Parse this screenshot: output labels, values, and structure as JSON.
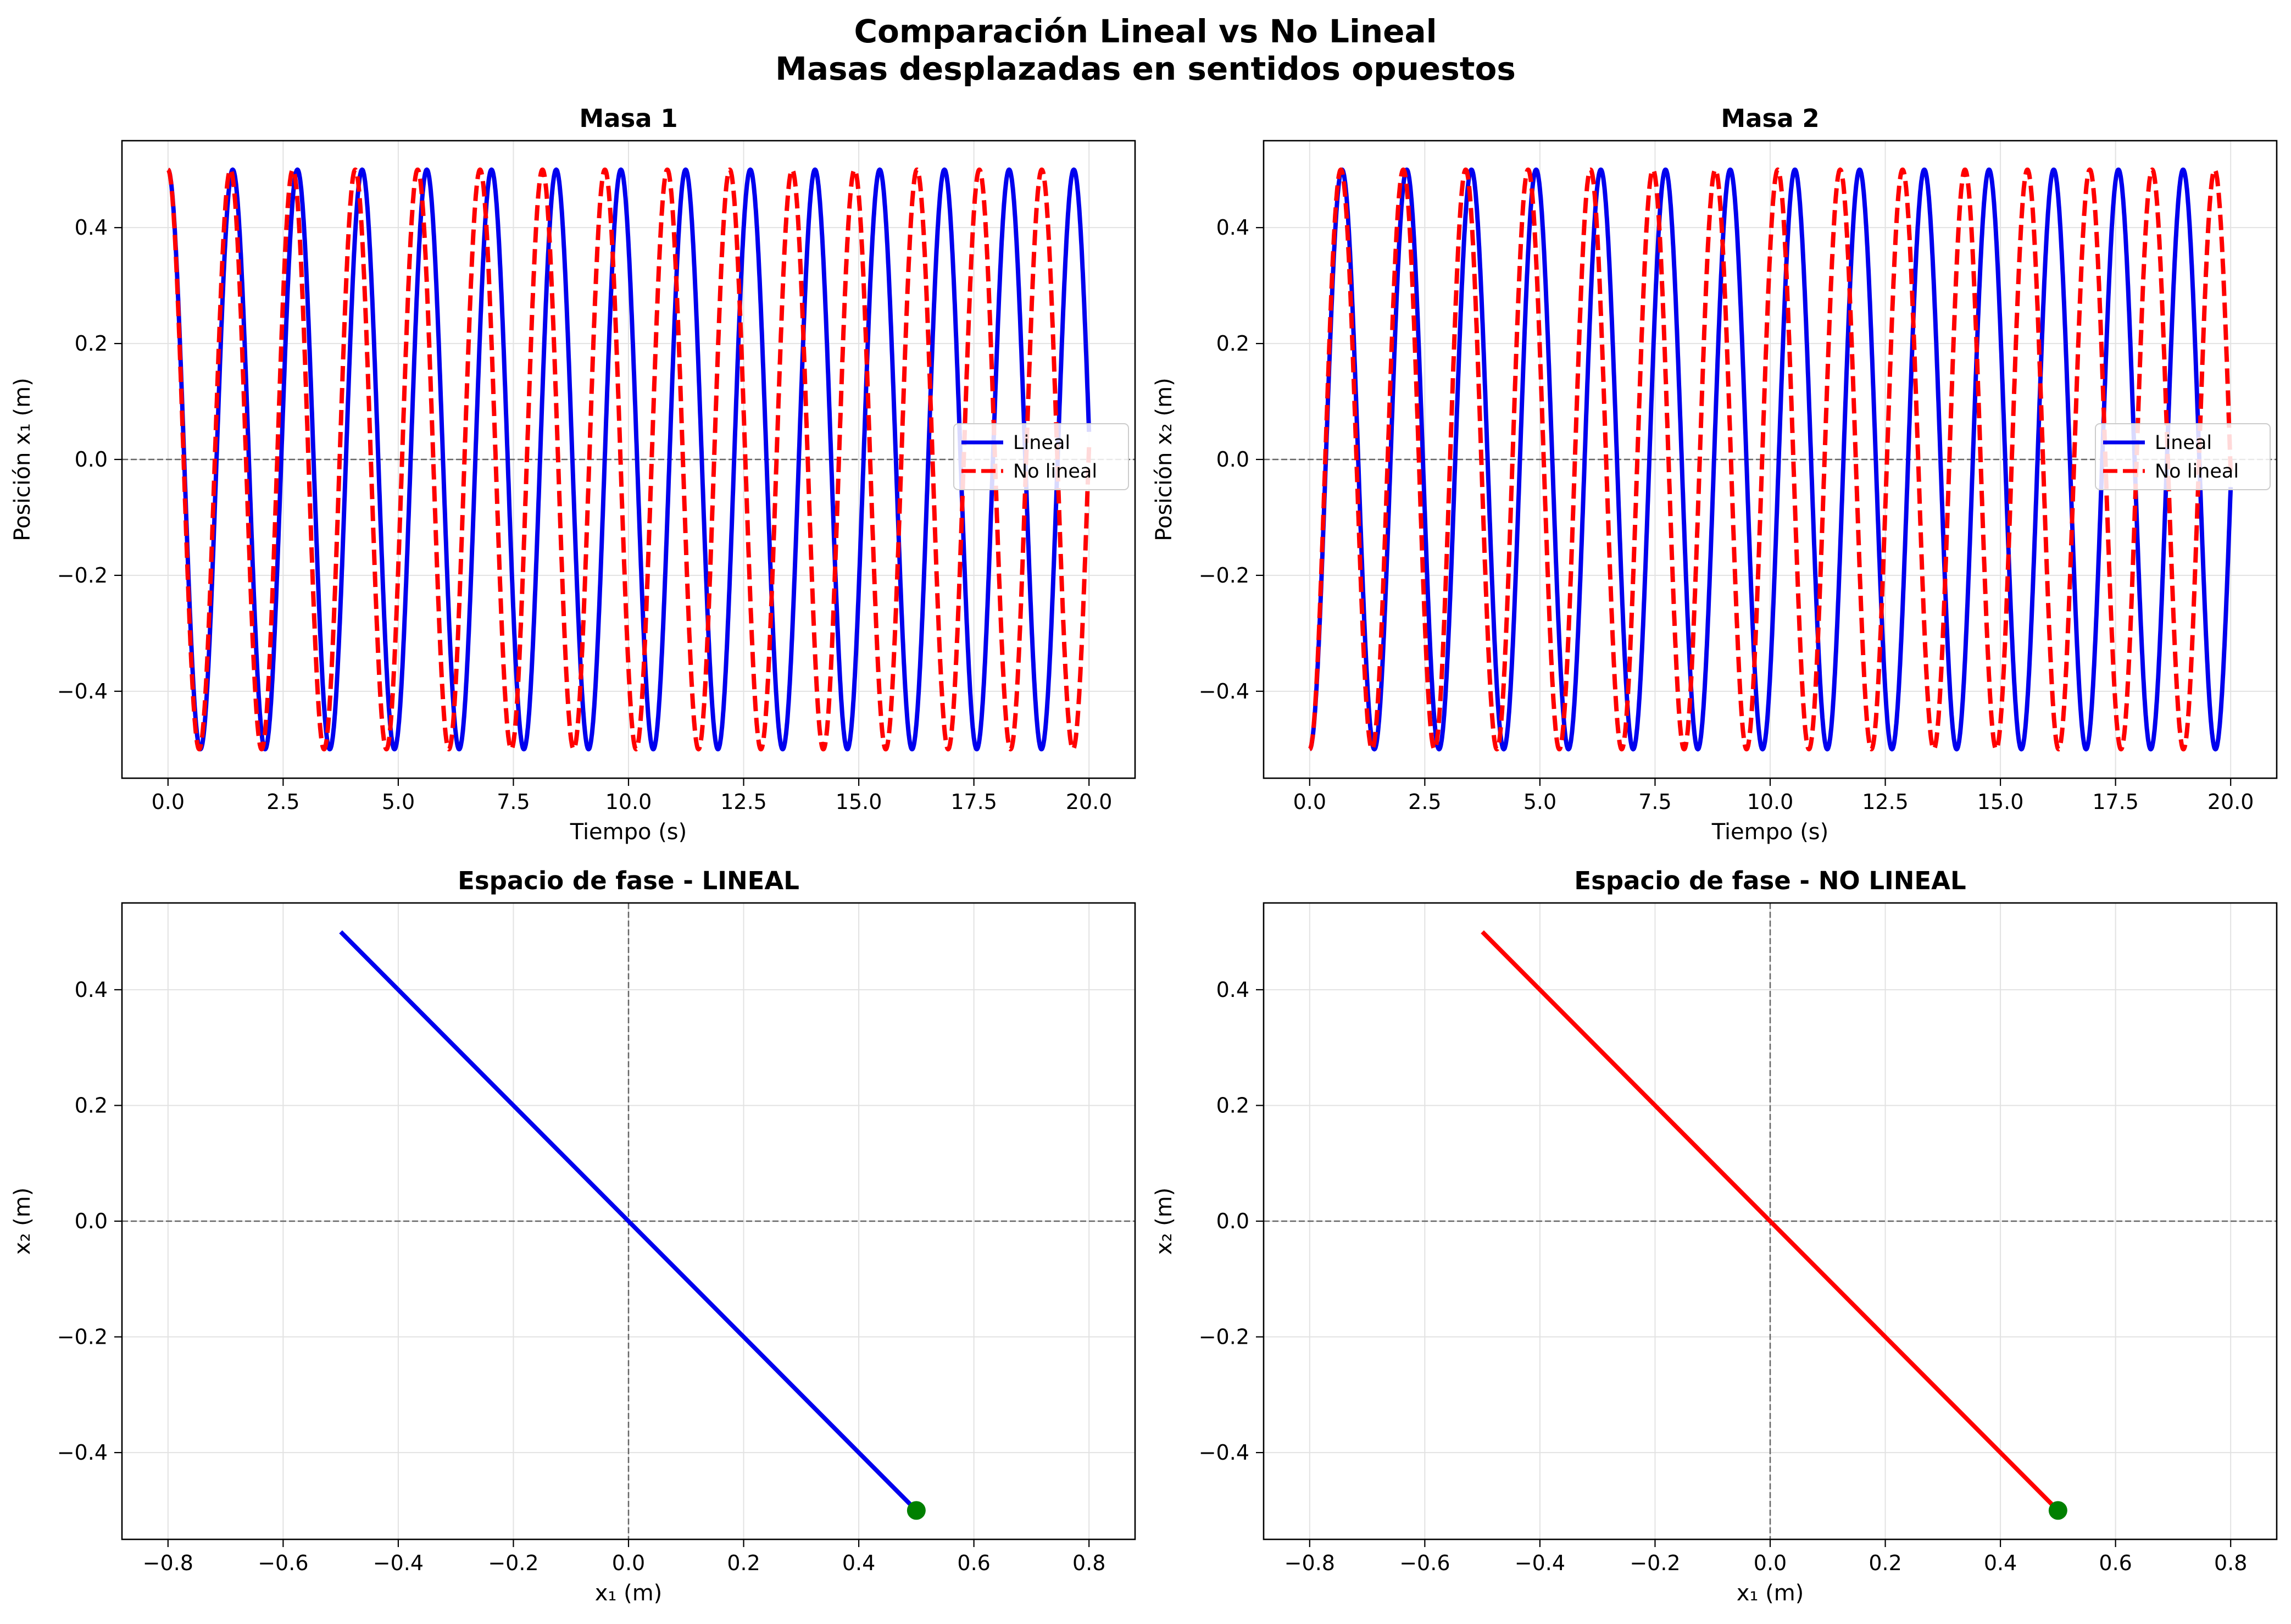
{
  "figure": {
    "title_line1": "Comparación Lineal vs No Lineal",
    "title_line2": "Masas desplazadas en sentidos opuestos"
  },
  "colors": {
    "lineal": "#0000ee",
    "no_lineal": "#ff0000",
    "marker": "#008000",
    "grid": "#e2e2e2",
    "zero": "#666666"
  },
  "chart_data": [
    {
      "id": "masa1",
      "type": "line",
      "title": "Masa 1",
      "xlabel": "Tiempo (s)",
      "ylabel": "Posición x₁ (m)",
      "xlim": [
        -1.0,
        21.0
      ],
      "ylim": [
        -0.55,
        0.55
      ],
      "xticks": [
        0,
        2.5,
        5,
        7.5,
        10,
        12.5,
        15,
        17.5,
        20
      ],
      "xtick_labels": [
        "0.0",
        "2.5",
        "5.0",
        "7.5",
        "10.0",
        "12.5",
        "15.0",
        "17.5",
        "20.0"
      ],
      "yticks": [
        -0.4,
        -0.2,
        0.0,
        0.2,
        0.4
      ],
      "ytick_labels": [
        "−0.4",
        "−0.2",
        "0.0",
        "0.2",
        "0.4"
      ],
      "grid": true,
      "zero_line": "y",
      "legend_position": "center-right",
      "series": [
        {
          "name": "Lineal",
          "style": "solid",
          "color": "#0000ee",
          "function": "0.5*cos(4.472*t)",
          "t_range": [
            0,
            20
          ]
        },
        {
          "name": "No lineal",
          "style": "dashed",
          "color": "#ff0000",
          "function": "0.5*cos(4.636*t)",
          "t_range": [
            0,
            20
          ]
        }
      ]
    },
    {
      "id": "masa2",
      "type": "line",
      "title": "Masa 2",
      "xlabel": "Tiempo (s)",
      "ylabel": "Posición x₂ (m)",
      "xlim": [
        -1.0,
        21.0
      ],
      "ylim": [
        -0.55,
        0.55
      ],
      "xticks": [
        0,
        2.5,
        5,
        7.5,
        10,
        12.5,
        15,
        17.5,
        20
      ],
      "xtick_labels": [
        "0.0",
        "2.5",
        "5.0",
        "7.5",
        "10.0",
        "12.5",
        "15.0",
        "17.5",
        "20.0"
      ],
      "yticks": [
        -0.4,
        -0.2,
        0.0,
        0.2,
        0.4
      ],
      "ytick_labels": [
        "−0.4",
        "−0.2",
        "0.0",
        "0.2",
        "0.4"
      ],
      "grid": true,
      "zero_line": "y",
      "legend_position": "center-right",
      "series": [
        {
          "name": "Lineal",
          "style": "solid",
          "color": "#0000ee",
          "function": "-0.5*cos(4.472*t)",
          "t_range": [
            0,
            20
          ]
        },
        {
          "name": "No lineal",
          "style": "dashed",
          "color": "#ff0000",
          "function": "-0.5*cos(4.636*t)",
          "t_range": [
            0,
            20
          ]
        }
      ]
    },
    {
      "id": "fase_lineal",
      "type": "line",
      "title": "Espacio de fase - LINEAL",
      "xlabel": "x₁ (m)",
      "ylabel": "x₂ (m)",
      "xlim": [
        -0.88,
        0.88
      ],
      "ylim": [
        -0.55,
        0.55
      ],
      "xticks": [
        -0.8,
        -0.6,
        -0.4,
        -0.2,
        0.0,
        0.2,
        0.4,
        0.6,
        0.8
      ],
      "xtick_labels": [
        "−0.8",
        "−0.6",
        "−0.4",
        "−0.2",
        "0.0",
        "0.2",
        "0.4",
        "0.6",
        "0.8"
      ],
      "yticks": [
        -0.4,
        -0.2,
        0.0,
        0.2,
        0.4
      ],
      "ytick_labels": [
        "−0.4",
        "−0.2",
        "0.0",
        "0.2",
        "0.4"
      ],
      "grid": true,
      "zero_line": "both",
      "series": [
        {
          "style": "solid",
          "color": "#0000ee",
          "x": [
            -0.5,
            0.5
          ],
          "y": [
            0.5,
            -0.5
          ]
        }
      ],
      "marker": {
        "x": 0.5,
        "y": -0.5,
        "color": "#008000"
      }
    },
    {
      "id": "fase_no_lineal",
      "type": "line",
      "title": "Espacio de fase - NO LINEAL",
      "xlabel": "x₁ (m)",
      "ylabel": "x₂ (m)",
      "xlim": [
        -0.88,
        0.88
      ],
      "ylim": [
        -0.55,
        0.55
      ],
      "xticks": [
        -0.8,
        -0.6,
        -0.4,
        -0.2,
        0.0,
        0.2,
        0.4,
        0.6,
        0.8
      ],
      "xtick_labels": [
        "−0.8",
        "−0.6",
        "−0.4",
        "−0.2",
        "0.0",
        "0.2",
        "0.4",
        "0.6",
        "0.8"
      ],
      "yticks": [
        -0.4,
        -0.2,
        0.0,
        0.2,
        0.4
      ],
      "ytick_labels": [
        "−0.4",
        "−0.2",
        "0.0",
        "0.2",
        "0.4"
      ],
      "grid": true,
      "zero_line": "both",
      "series": [
        {
          "style": "solid",
          "color": "#ff0000",
          "x": [
            -0.5,
            0.5
          ],
          "y": [
            0.5,
            -0.5
          ]
        }
      ],
      "marker": {
        "x": 0.5,
        "y": -0.5,
        "color": "#008000"
      }
    }
  ]
}
